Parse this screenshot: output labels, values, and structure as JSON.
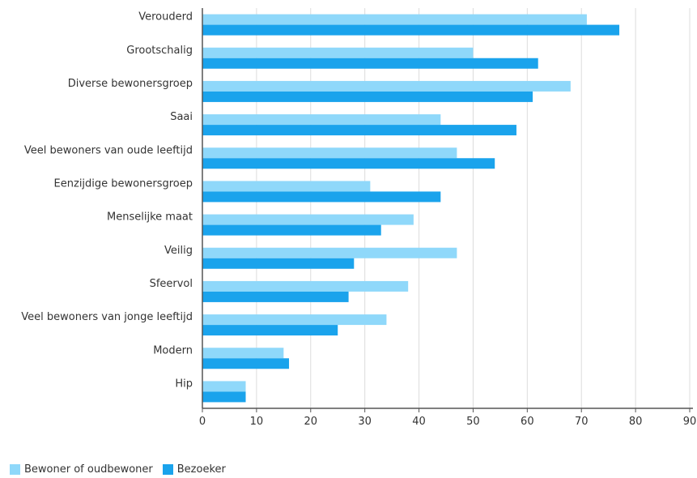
{
  "chart_data": {
    "type": "bar",
    "orientation": "horizontal",
    "title": "",
    "categories": [
      "Verouderd",
      "Grootschalig",
      "Diverse bewonersgroep",
      "Saai",
      "Veel bewoners van oude leeftijd",
      "Eenzijdige bewonersgroep",
      "Menselijke maat",
      "Veilig",
      "Sfeervol",
      "Veel bewoners van jonge leeftijd",
      "Modern",
      "Hip"
    ],
    "series": [
      {
        "name": "Bewoner of oudbewoner",
        "color": "#8fd8fa",
        "values": [
          71,
          50,
          68,
          44,
          47,
          31,
          39,
          47,
          38,
          34,
          15,
          8
        ]
      },
      {
        "name": "Bezoeker",
        "color": "#1aa3ec",
        "values": [
          77,
          62,
          61,
          58,
          54,
          44,
          33,
          28,
          27,
          25,
          16,
          8
        ]
      }
    ],
    "xlim": [
      0,
      90
    ],
    "xticks": [
      0,
      10,
      20,
      30,
      40,
      50,
      60,
      70,
      80,
      90
    ],
    "grid": true,
    "legend_position": "bottom-left"
  }
}
